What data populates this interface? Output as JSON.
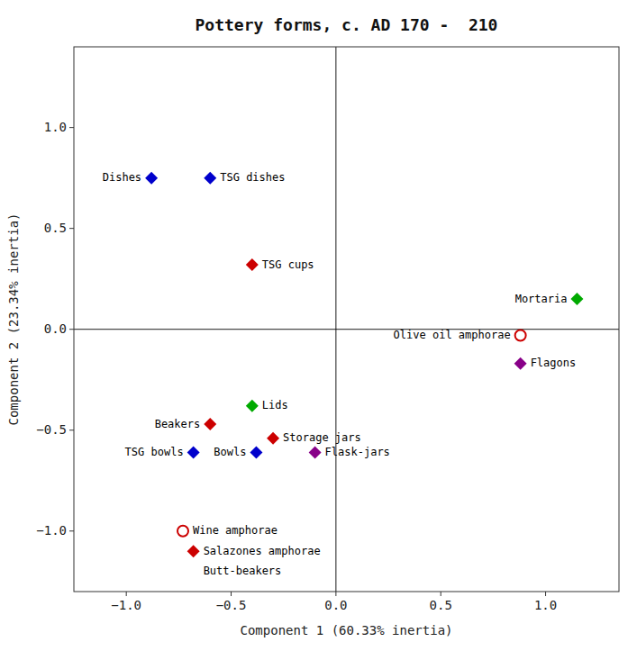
{
  "chart_data": {
    "type": "scatter",
    "title": "Pottery forms, c. AD 170 -  210",
    "x_label": "Component 1 (60.33% inertia)",
    "y_label": "Component 2 (23.34% inertia)",
    "xlim": [
      -1.25,
      1.35
    ],
    "ylim": [
      -1.3,
      1.4
    ],
    "xticks": [
      {
        "value": -1,
        "label": "−1.0"
      },
      {
        "value": -0.5,
        "label": "−0.5"
      },
      {
        "value": 0,
        "label": "0.0"
      },
      0.5,
      {
        "value": 1,
        "label": "1.0"
      }
    ],
    "yticks": [
      {
        "value": -1,
        "label": "−1.0"
      },
      {
        "value": -0.5,
        "label": "−0.5"
      },
      {
        "value": 0,
        "label": "0.0"
      },
      0.5,
      {
        "value": 1,
        "label": "1.0"
      }
    ],
    "grid": false,
    "series": [
      {
        "marker": "diamond",
        "x": [
          -0.88,
          -0.6,
          -0.4,
          1.15,
          0.88,
          -0.4,
          -0.6,
          -0.3,
          -0.38,
          -0.68,
          -0.1,
          -0.68
        ],
        "values": [
          0.75,
          0.75,
          0.32,
          0.15,
          -0.17,
          -0.38,
          -0.47,
          -0.54,
          -0.61,
          -0.61,
          -0.61,
          -1.1
        ],
        "labels": [
          "Dishes",
          "TSG dishes",
          "TSG cups",
          "Mortaria",
          "Flagons",
          "Lids",
          "Beakers",
          "Storage jars",
          "Bowls",
          "TSG bowls",
          "Flask-jars",
          "Salazones amphorae"
        ],
        "colors": [
          "#0000cc",
          "#0000cc",
          "#cc0000",
          "#00aa00",
          "#880088",
          "#00aa00",
          "#cc0000",
          "#cc0000",
          "#0000cc",
          "#0000cc",
          "#880088",
          "#cc0000"
        ]
      },
      {
        "marker": "open-circle",
        "x": [
          0.88,
          -0.73
        ],
        "values": [
          -0.03,
          -1.0
        ],
        "labels": [
          "Olive oil amphorae",
          "Wine amphorae"
        ],
        "colors": [
          "#cc0000",
          "#cc0000"
        ]
      }
    ],
    "annotations": [
      {
        "text": "Butt-beakers",
        "x": -0.68,
        "y": -1.2
      }
    ]
  }
}
